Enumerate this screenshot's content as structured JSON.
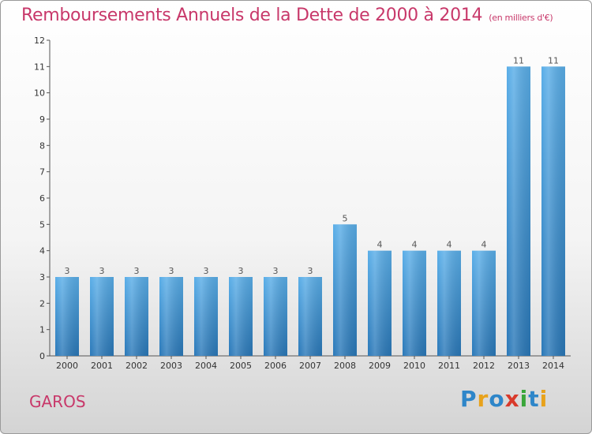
{
  "header": {
    "title": "Remboursements Annuels de la Dette de 2000 à 2014",
    "subtitle": "(en milliers d'€)"
  },
  "footer": {
    "commune": "GAROS",
    "logo_text": "Proxiti",
    "logo_colors": [
      "#2e86c9",
      "#e8a21b",
      "#2e86c9",
      "#d93a2b",
      "#3aa63a",
      "#2e86c9",
      "#e8a21b"
    ]
  },
  "chart_data": {
    "type": "bar",
    "title": "Remboursements Annuels de la Dette de 2000 à 2014",
    "subtitle": "(en milliers d'€)",
    "categories": [
      "2000",
      "2001",
      "2002",
      "2003",
      "2004",
      "2005",
      "2006",
      "2007",
      "2008",
      "2009",
      "2010",
      "2011",
      "2012",
      "2013",
      "2014"
    ],
    "values": [
      3,
      3,
      3,
      3,
      3,
      3,
      3,
      3,
      5,
      4,
      4,
      4,
      4,
      11,
      11
    ],
    "ylim": [
      0,
      12
    ],
    "yticks": [
      0,
      1,
      2,
      3,
      4,
      5,
      6,
      7,
      8,
      9,
      10,
      11,
      12
    ],
    "grid": false,
    "bar_color_top": "#5aaee8",
    "bar_color_bottom": "#2a78b8"
  }
}
